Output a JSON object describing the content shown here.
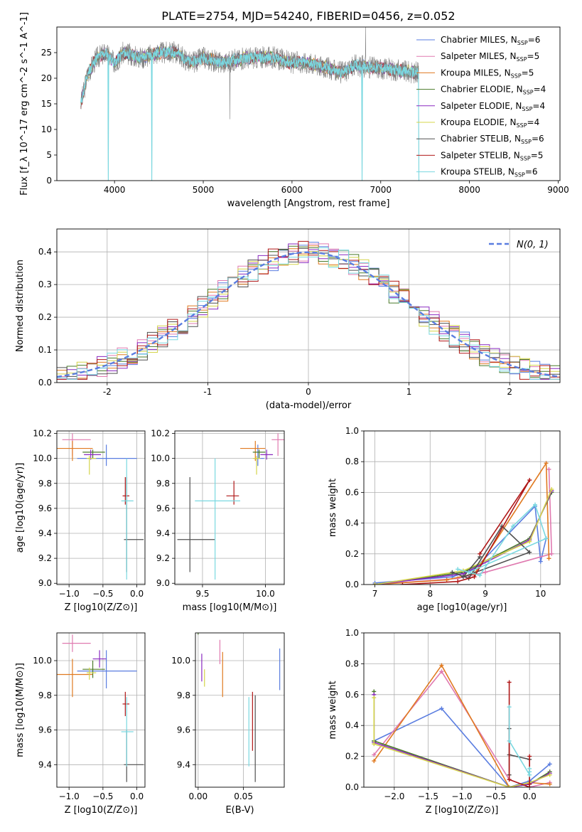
{
  "figure_title": "PLATE=2754, MJD=54240, FIBERID=0456, z=0.052",
  "series_styles": [
    {
      "label": "Chabrier MILES",
      "nssp": "6",
      "color": "#5a7de0"
    },
    {
      "label": "Salpeter MILES",
      "nssp": "5",
      "color": "#e07ab0"
    },
    {
      "label": "Kroupa MILES",
      "nssp": "5",
      "color": "#e07a20"
    },
    {
      "label": "Chabrier ELODIE",
      "nssp": "4",
      "color": "#4a7a2a"
    },
    {
      "label": "Salpeter ELODIE",
      "nssp": "4",
      "color": "#8a2ac0"
    },
    {
      "label": "Kroupa ELODIE",
      "nssp": "4",
      "color": "#d4d44a"
    },
    {
      "label": "Chabrier STELIB",
      "nssp": "6",
      "color": "#505050"
    },
    {
      "label": "Salpeter STELIB",
      "nssp": "5",
      "color": "#b01818"
    },
    {
      "label": "Kroupa STELIB",
      "nssp": "6",
      "color": "#7ad8e0"
    }
  ],
  "chart_data": [
    {
      "id": "spectrum",
      "type": "line",
      "xlabel": "wavelength [Angstrom, rest frame]",
      "ylabel": "Flux [f_λ 10^-17 erg cm^-2 s^-1 A^-1]",
      "xlim": [
        3350,
        9020
      ],
      "ylim": [
        0,
        30
      ],
      "xticks": [
        4000,
        5000,
        6000,
        7000,
        8000,
        9000
      ],
      "yticks": [
        0,
        5,
        10,
        15,
        20,
        25
      ],
      "legend": "top-right",
      "grid": false,
      "observed_spectrum": {
        "color": "#808080",
        "x_range": [
          3620,
          7430
        ],
        "anchors": [
          [
            3620,
            15
          ],
          [
            3700,
            21
          ],
          [
            3800,
            24
          ],
          [
            3900,
            25
          ],
          [
            4000,
            23
          ],
          [
            4100,
            25
          ],
          [
            4300,
            24
          ],
          [
            4500,
            25
          ],
          [
            4700,
            25
          ],
          [
            4860,
            23
          ],
          [
            5000,
            24
          ],
          [
            5200,
            23
          ],
          [
            5500,
            24
          ],
          [
            5800,
            24
          ],
          [
            6000,
            23
          ],
          [
            6200,
            23
          ],
          [
            6400,
            22
          ],
          [
            6563,
            21
          ],
          [
            6700,
            22.5
          ],
          [
            7000,
            22
          ],
          [
            7200,
            21.5
          ],
          [
            7430,
            21
          ]
        ],
        "spikes": [
          [
            3930,
            0
          ],
          [
            4420,
            0
          ],
          [
            5300,
            12
          ],
          [
            6790,
            0
          ],
          [
            6830,
            30
          ],
          [
            7430,
            0
          ]
        ]
      },
      "model_spectra_range": [
        3620,
        7430
      ]
    },
    {
      "id": "residual-histogram",
      "type": "bar",
      "xlabel": "(data-model)/error",
      "ylabel": "Normed distribution",
      "xlim": [
        -2.5,
        2.5
      ],
      "ylim": [
        0,
        0.47
      ],
      "xticks": [
        -2,
        -1,
        0,
        1,
        2
      ],
      "yticks": [
        0.0,
        0.1,
        0.2,
        0.3,
        0.4
      ],
      "grid": true,
      "legend": "top-right",
      "reference_curve": {
        "label": "N(0, 1)",
        "mean": 0,
        "sigma": 1,
        "color": "#5a7de0",
        "style": "dashed"
      },
      "bin_width": 0.1,
      "series_bins_note": "step histograms approximately following N(0,1)"
    },
    {
      "id": "age-vs-Z",
      "type": "scatter",
      "xlabel": "Z [log10(Z/Z⊙)]",
      "ylabel": "age [log10(age/yr)]",
      "xlim": [
        -1.18,
        0.12
      ],
      "ylim": [
        8.99,
        10.22
      ],
      "xticks": [
        -1.0,
        -0.5,
        0.0
      ],
      "yticks": [
        9.0,
        9.2,
        9.4,
        9.6,
        9.8,
        10.0,
        10.2
      ],
      "grid": true,
      "points": [
        {
          "x": -0.45,
          "y": 10.0,
          "xerr": [
            0.43,
            0.45
          ],
          "yerr": [
            0.06,
            0.11
          ]
        },
        {
          "x": -0.95,
          "y": 10.15,
          "xerr": [
            0.15,
            0.27
          ],
          "yerr": [
            0.13,
            0.05
          ]
        },
        {
          "x": -0.95,
          "y": 10.08,
          "xerr": [
            0.25,
            0.3
          ],
          "yerr": [
            0.1,
            0.06
          ]
        },
        {
          "x": -0.65,
          "y": 10.05,
          "xerr": [
            0.15,
            0.18
          ],
          "yerr": [
            0.05,
            0.02
          ]
        },
        {
          "x": -0.68,
          "y": 10.03,
          "xerr": [
            0.1,
            0.15
          ],
          "yerr": [
            0.04,
            0.04
          ]
        },
        {
          "x": -0.7,
          "y": 10.0,
          "xerr": [
            0.04,
            0.1
          ],
          "yerr": [
            0.13,
            0.02
          ]
        },
        {
          "x": -0.15,
          "y": 9.35,
          "xerr": [
            0.04,
            0.25
          ],
          "yerr": [
            0.26,
            0.5
          ]
        },
        {
          "x": -0.17,
          "y": 9.7,
          "xerr": [
            0.04,
            0.06
          ],
          "yerr": [
            0.07,
            0.15
          ]
        },
        {
          "x": -0.15,
          "y": 9.66,
          "xerr": [
            0.08,
            0.1
          ],
          "yerr": [
            0.63,
            0.34
          ]
        }
      ]
    },
    {
      "id": "age-vs-mass",
      "type": "scatter",
      "xlabel": "mass [log10(M/M⊙)]",
      "ylabel": "",
      "xlim": [
        9.28,
        10.15
      ],
      "ylim": [
        8.99,
        10.22
      ],
      "xticks": [
        9.5,
        10.0
      ],
      "yticks": [
        9.0,
        9.2,
        9.4,
        9.6,
        9.8,
        10.0,
        10.2
      ],
      "grid": true,
      "points": [
        {
          "x": 9.94,
          "y": 10.0,
          "xerr": [
            0.03,
            0.05
          ],
          "yerr": [
            0.06,
            0.11
          ]
        },
        {
          "x": 10.1,
          "y": 10.15,
          "xerr": [
            0.05,
            0.05
          ],
          "yerr": [
            0.13,
            0.05
          ]
        },
        {
          "x": 9.92,
          "y": 10.08,
          "xerr": [
            0.12,
            0.08
          ],
          "yerr": [
            0.1,
            0.06
          ]
        },
        {
          "x": 9.95,
          "y": 10.05,
          "xerr": [
            0.05,
            0.05
          ],
          "yerr": [
            0.05,
            0.02
          ]
        },
        {
          "x": 10.01,
          "y": 10.03,
          "xerr": [
            0.05,
            0.05
          ],
          "yerr": [
            0.04,
            0.04
          ]
        },
        {
          "x": 9.93,
          "y": 10.0,
          "xerr": [
            0.03,
            0.03
          ],
          "yerr": [
            0.13,
            0.02
          ]
        },
        {
          "x": 9.4,
          "y": 9.35,
          "xerr": [
            0.1,
            0.2
          ],
          "yerr": [
            0.26,
            0.5
          ]
        },
        {
          "x": 9.75,
          "y": 9.7,
          "xerr": [
            0.06,
            0.04
          ],
          "yerr": [
            0.07,
            0.12
          ]
        },
        {
          "x": 9.6,
          "y": 9.66,
          "xerr": [
            0.16,
            0.2
          ],
          "yerr": [
            0.63,
            0.34
          ]
        }
      ]
    },
    {
      "id": "weight-vs-age",
      "type": "line",
      "xlabel": "age [log10(age/yr)]",
      "ylabel": "mass weight",
      "xlim": [
        6.8,
        10.35
      ],
      "ylim": [
        0,
        1.0
      ],
      "xticks": [
        7,
        8,
        9,
        10
      ],
      "yticks": [
        0.0,
        0.2,
        0.4,
        0.6,
        0.8,
        1.0
      ],
      "grid": true,
      "series": [
        {
          "x": [
            7.0,
            8.4,
            8.8,
            9.9,
            10.0,
            10.1
          ],
          "y": [
            0.01,
            0.05,
            0.1,
            0.51,
            0.15,
            0.3
          ]
        },
        {
          "x": [
            7.0,
            8.5,
            9.0,
            10.2,
            10.15
          ],
          "y": [
            0.0,
            0.04,
            0.08,
            0.2,
            0.75
          ]
        },
        {
          "x": [
            7.0,
            8.3,
            8.8,
            10.1,
            10.15
          ],
          "y": [
            0.0,
            0.03,
            0.07,
            0.79,
            0.17
          ]
        },
        {
          "x": [
            7.0,
            8.6,
            9.8,
            10.2
          ],
          "y": [
            0.0,
            0.08,
            0.3,
            0.6
          ]
        },
        {
          "x": [
            7.0,
            8.6,
            9.8,
            10.2
          ],
          "y": [
            0.0,
            0.07,
            0.29,
            0.61
          ]
        },
        {
          "x": [
            7.0,
            8.6,
            9.8,
            10.2
          ],
          "y": [
            0.0,
            0.09,
            0.28,
            0.62
          ]
        },
        {
          "x": [
            8.4,
            8.7,
            9.3,
            9.8,
            8.6,
            8.9
          ],
          "y": [
            0.08,
            0.04,
            0.38,
            0.21,
            0.05,
            0.18
          ]
        },
        {
          "x": [
            7.5,
            8.5,
            8.8,
            9.8,
            8.9
          ],
          "y": [
            0.0,
            0.02,
            0.05,
            0.68,
            0.2
          ]
        },
        {
          "x": [
            8.5,
            8.9,
            9.5,
            9.9,
            10.1,
            8.7
          ],
          "y": [
            0.1,
            0.06,
            0.38,
            0.52,
            0.3,
            0.08
          ]
        }
      ]
    },
    {
      "id": "mass-vs-Z",
      "type": "scatter",
      "xlabel": "Z [log10(Z/Z⊙)]",
      "ylabel": "mass [log10(M/M⊙)]",
      "xlim": [
        -1.18,
        0.12
      ],
      "ylim": [
        9.27,
        10.16
      ],
      "xticks": [
        -1.0,
        -0.5,
        0.0
      ],
      "yticks": [
        9.4,
        9.6,
        9.8,
        10.0
      ],
      "grid": true,
      "points": [
        {
          "x": -0.45,
          "y": 9.94,
          "xerr": [
            0.43,
            0.45
          ],
          "yerr": [
            0.1,
            0.12
          ]
        },
        {
          "x": -0.95,
          "y": 10.1,
          "xerr": [
            0.15,
            0.27
          ],
          "yerr": [
            0.05,
            0.05
          ]
        },
        {
          "x": -0.95,
          "y": 9.92,
          "xerr": [
            0.25,
            0.3
          ],
          "yerr": [
            0.13,
            0.09
          ]
        },
        {
          "x": -0.65,
          "y": 9.95,
          "xerr": [
            0.15,
            0.18
          ],
          "yerr": [
            0.05,
            0.05
          ]
        },
        {
          "x": -0.55,
          "y": 10.01,
          "xerr": [
            0.1,
            0.1
          ],
          "yerr": [
            0.05,
            0.05
          ]
        },
        {
          "x": -0.7,
          "y": 9.93,
          "xerr": [
            0.04,
            0.1
          ],
          "yerr": [
            0.04,
            0.03
          ]
        },
        {
          "x": -0.15,
          "y": 9.4,
          "xerr": [
            0.04,
            0.25
          ],
          "yerr": [
            0.1,
            0.2
          ]
        },
        {
          "x": -0.17,
          "y": 9.75,
          "xerr": [
            0.04,
            0.06
          ],
          "yerr": [
            0.07,
            0.07
          ]
        },
        {
          "x": -0.15,
          "y": 9.59,
          "xerr": [
            0.08,
            0.1
          ],
          "yerr": [
            0.2,
            0.2
          ]
        }
      ]
    },
    {
      "id": "mass-vs-EBV",
      "type": "scatter",
      "xlabel": "E(B-V)",
      "ylabel": "",
      "xlim": [
        -0.003,
        0.095
      ],
      "ylim": [
        9.27,
        10.16
      ],
      "xticks": [
        0.0,
        0.05
      ],
      "yticks": [
        9.4,
        9.6,
        9.8,
        10.0
      ],
      "grid": true,
      "points": [
        {
          "x": 0.09,
          "y": 9.95,
          "xerr": [
            0,
            0
          ],
          "yerr": [
            0.12,
            0.12
          ]
        },
        {
          "x": 0.024,
          "y": 10.05,
          "xerr": [
            0,
            0
          ],
          "yerr": [
            0.07,
            0.07
          ]
        },
        {
          "x": 0.027,
          "y": 9.92,
          "xerr": [
            0,
            0
          ],
          "yerr": [
            0.13,
            0.13
          ]
        },
        {
          "x": 0.0,
          "y": 10.2,
          "xerr": [
            0,
            0
          ],
          "yerr": [
            0.05,
            0.05
          ]
        },
        {
          "x": 0.004,
          "y": 9.96,
          "xerr": [
            0,
            0
          ],
          "yerr": [
            0.08,
            0.08
          ]
        },
        {
          "x": 0.007,
          "y": 9.9,
          "xerr": [
            0,
            0
          ],
          "yerr": [
            0.05,
            0.05
          ]
        },
        {
          "x": 0.063,
          "y": 9.55,
          "xerr": [
            0,
            0
          ],
          "yerr": [
            0.25,
            0.25
          ]
        },
        {
          "x": 0.06,
          "y": 9.65,
          "xerr": [
            0,
            0
          ],
          "yerr": [
            0.17,
            0.17
          ]
        },
        {
          "x": 0.056,
          "y": 9.59,
          "xerr": [
            0,
            0
          ],
          "yerr": [
            0.2,
            0.2
          ]
        }
      ]
    },
    {
      "id": "weight-vs-Z",
      "type": "line",
      "xlabel": "Z [log10(Z/Z⊙)]",
      "ylabel": "mass weight",
      "xlim": [
        -2.45,
        0.45
      ],
      "ylim": [
        0,
        1.0
      ],
      "xticks": [
        -2.0,
        -1.5,
        -1.0,
        -0.5,
        0.0
      ],
      "yticks": [
        0.0,
        0.2,
        0.4,
        0.6,
        0.8,
        1.0
      ],
      "grid": true,
      "series": [
        {
          "x": [
            -2.3,
            -1.3,
            -0.3,
            0.0,
            0.3
          ],
          "y": [
            0.3,
            0.51,
            0.0,
            0.04,
            0.15
          ]
        },
        {
          "x": [
            -2.3,
            -1.3,
            -0.3,
            0.0,
            0.3
          ],
          "y": [
            0.21,
            0.75,
            0.05,
            0.0,
            0.03
          ]
        },
        {
          "x": [
            -2.3,
            -1.3,
            -0.3,
            0.0,
            0.3
          ],
          "y": [
            0.17,
            0.79,
            0.0,
            0.03,
            0.02
          ]
        },
        {
          "x": [
            -2.3,
            -2.3,
            -0.3,
            0.0,
            0.3
          ],
          "y": [
            0.62,
            0.3,
            0.0,
            0.02,
            0.1
          ]
        },
        {
          "x": [
            -2.3,
            -2.3,
            -0.3,
            0.0,
            0.3
          ],
          "y": [
            0.6,
            0.29,
            0.0,
            0.02,
            0.09
          ]
        },
        {
          "x": [
            -2.3,
            -2.3,
            -0.3,
            0.0,
            0.3
          ],
          "y": [
            0.58,
            0.28,
            0.0,
            0.03,
            0.08
          ]
        },
        {
          "x": [
            -0.3,
            -0.3,
            -0.3,
            0.0,
            0.0
          ],
          "y": [
            0.38,
            0.08,
            0.21,
            0.18,
            0.0
          ]
        },
        {
          "x": [
            -0.3,
            -0.3,
            0.0,
            0.0,
            0.0
          ],
          "y": [
            0.68,
            0.05,
            0.0,
            0.2,
            0.02
          ]
        },
        {
          "x": [
            -0.3,
            -0.3,
            0.0,
            0.0,
            0.0
          ],
          "y": [
            0.52,
            0.3,
            0.08,
            0.1,
            0.12
          ]
        }
      ]
    }
  ]
}
